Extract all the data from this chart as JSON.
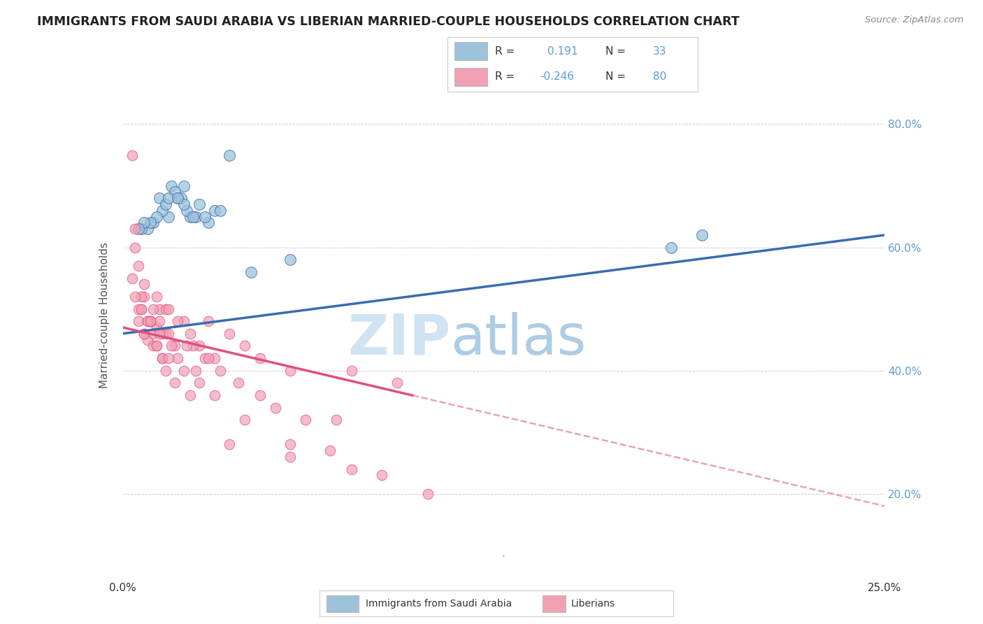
{
  "title": "IMMIGRANTS FROM SAUDI ARABIA VS LIBERIAN MARRIED-COUPLE HOUSEHOLDS CORRELATION CHART",
  "source": "Source: ZipAtlas.com",
  "ylabel": "Married-couple Households",
  "xlim": [
    0.0,
    25.0
  ],
  "ylim": [
    10.0,
    88.0
  ],
  "ytick_positions": [
    20.0,
    40.0,
    60.0,
    80.0
  ],
  "color_blue": "#9DC3DA",
  "color_pink": "#F2A0B4",
  "line_blue": "#3B6BB0",
  "line_pink": "#E05080",
  "watermark_zip": "#C8DFF0",
  "watermark_atlas": "#A0C4E0",
  "blue_line_x0": 0.0,
  "blue_line_y0": 46.0,
  "blue_line_x1": 25.0,
  "blue_line_y1": 62.0,
  "pink_line_x0": 0.0,
  "pink_line_y0": 47.0,
  "pink_line_x1": 25.0,
  "pink_line_y1": 18.0,
  "pink_solid_end_x": 9.5,
  "saudi_x": [
    3.5,
    1.2,
    1.5,
    1.8,
    2.0,
    1.0,
    1.3,
    1.6,
    0.8,
    1.1,
    2.5,
    3.0,
    2.8,
    1.9,
    2.2,
    1.4,
    0.9,
    1.7,
    2.1,
    2.4,
    0.6,
    1.5,
    2.0,
    2.7,
    0.7,
    1.8,
    3.2,
    18.0,
    19.0,
    5.5,
    4.2,
    2.3,
    0.5
  ],
  "saudi_y": [
    75,
    68,
    65,
    68,
    70,
    64,
    66,
    70,
    63,
    65,
    67,
    66,
    64,
    68,
    65,
    67,
    64,
    69,
    66,
    65,
    63,
    68,
    67,
    65,
    64,
    68,
    66,
    60,
    62,
    58,
    56,
    65,
    63
  ],
  "liberian_x": [
    0.3,
    0.5,
    0.7,
    0.8,
    0.4,
    0.6,
    0.9,
    1.0,
    1.1,
    1.2,
    1.3,
    1.4,
    0.5,
    0.7,
    0.9,
    1.1,
    1.3,
    1.5,
    1.7,
    2.0,
    2.2,
    2.5,
    2.8,
    3.0,
    3.5,
    4.0,
    4.5,
    5.5,
    7.5,
    9.0,
    0.4,
    0.6,
    0.8,
    1.0,
    1.2,
    1.4,
    1.6,
    1.8,
    2.3,
    2.7,
    0.5,
    0.7,
    0.9,
    1.1,
    1.3,
    1.5,
    1.8,
    2.1,
    2.4,
    2.8,
    3.2,
    3.8,
    4.5,
    5.0,
    6.0,
    7.0,
    0.3,
    0.6,
    0.8,
    1.0,
    1.2,
    1.5,
    2.0,
    2.5,
    3.0,
    4.0,
    5.5,
    6.8,
    0.4,
    0.7,
    0.9,
    1.1,
    1.4,
    1.7,
    2.2,
    3.5,
    5.5,
    7.5,
    8.5,
    10.0
  ],
  "liberian_y": [
    75,
    48,
    52,
    45,
    63,
    50,
    48,
    44,
    47,
    50,
    42,
    50,
    57,
    54,
    48,
    52,
    46,
    50,
    44,
    48,
    46,
    44,
    48,
    42,
    46,
    44,
    42,
    40,
    40,
    38,
    60,
    52,
    48,
    50,
    48,
    46,
    44,
    48,
    44,
    42,
    50,
    46,
    48,
    44,
    42,
    46,
    42,
    44,
    40,
    42,
    40,
    38,
    36,
    34,
    32,
    32,
    55,
    50,
    48,
    46,
    46,
    42,
    40,
    38,
    36,
    32,
    28,
    27,
    52,
    46,
    48,
    44,
    40,
    38,
    36,
    28,
    26,
    24,
    23,
    20
  ]
}
